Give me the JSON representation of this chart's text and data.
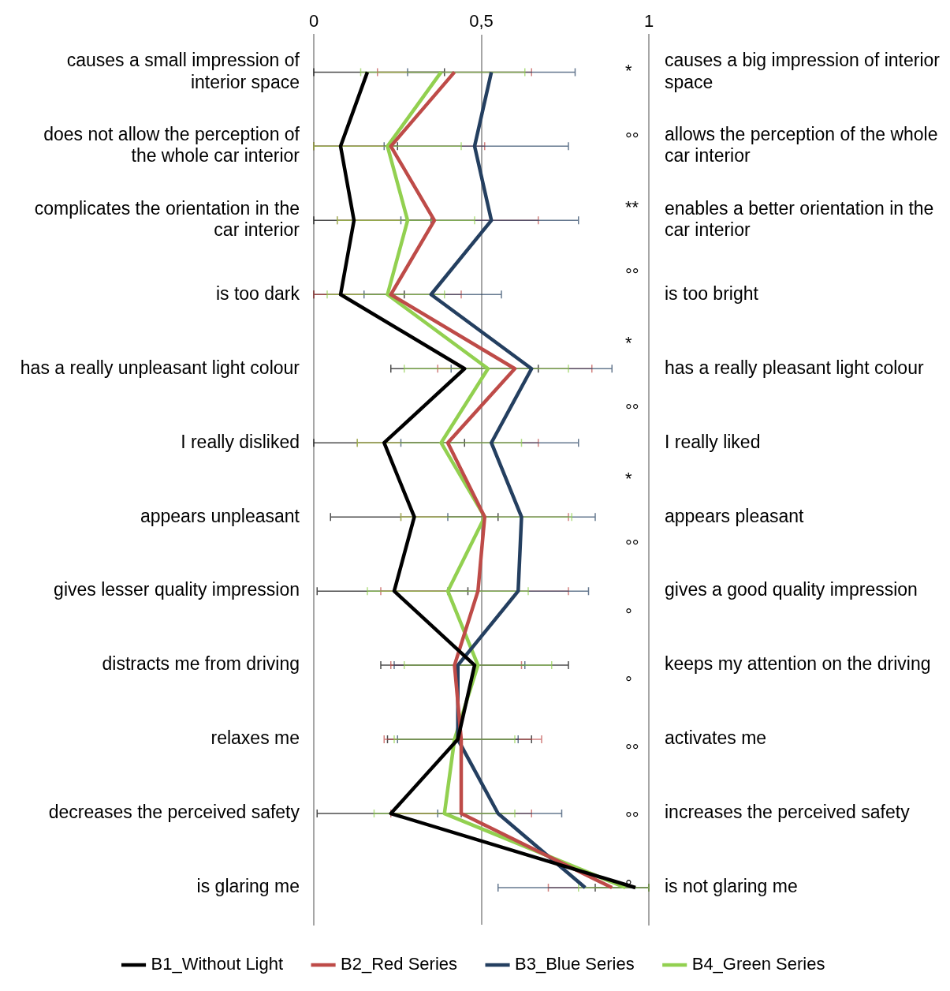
{
  "chart_data": {
    "type": "line",
    "orientation": "horizontal",
    "categories": [
      "causes a small impression of interior space",
      "does not allow the perception of the whole car interior",
      "complicates the orientation in the car interior",
      "is too dark",
      "has a really unpleasant light colour",
      "I really disliked",
      "appears unpleasant",
      "gives lesser quality impression",
      "distracts me from driving",
      "relaxes me",
      "decreases the perceived safety",
      "is glaring me"
    ],
    "y2_categories": [
      "causes a big impression of interior space",
      "allows the perception of the whole car interior",
      "enables a better orientation in the car interior",
      "is too bright",
      "has a really pleasant light colour",
      "I really liked",
      "appears pleasant",
      "gives a good quality impression",
      "keeps my attention on the driving",
      "activates me",
      "increases the perceived safety",
      "is not glaring me"
    ],
    "xlim": [
      0,
      1
    ],
    "xticks": [
      0,
      {
        "value": 0.5,
        "label": "0,5"
      },
      1
    ],
    "grid": "x",
    "legend": "bottom",
    "line_style": "solid",
    "series": [
      {
        "name": "B1_Without Light",
        "color": "#000000",
        "values": [
          0.16,
          0.08,
          0.12,
          0.08,
          0.45,
          0.21,
          0.3,
          0.24,
          0.48,
          0.43,
          0.23,
          0.96
        ],
        "errors": [
          [
            0,
            0.39
          ],
          [
            0,
            0.25
          ],
          [
            0,
            0.35
          ],
          [
            0,
            0.27
          ],
          [
            0.23,
            0.67
          ],
          [
            0,
            0.45
          ],
          [
            0.05,
            0.55
          ],
          [
            0.01,
            0.46
          ],
          [
            0.2,
            0.76
          ],
          [
            0.22,
            0.65
          ],
          [
            0.01,
            0.44
          ],
          [
            0.84,
            1
          ]
        ]
      },
      {
        "name": "B2_Red Series",
        "color": "#be4b48",
        "values": [
          0.42,
          0.23,
          0.36,
          0.23,
          0.6,
          0.4,
          0.51,
          0.49,
          0.42,
          0.44,
          0.44,
          0.89
        ],
        "errors": [
          [
            0.19,
            0.65
          ],
          [
            0,
            0.51
          ],
          [
            0.07,
            0.67
          ],
          [
            0,
            0.44
          ],
          [
            0.37,
            0.83
          ],
          [
            0.13,
            0.67
          ],
          [
            0.26,
            0.76
          ],
          [
            0.2,
            0.76
          ],
          [
            0.23,
            0.62
          ],
          [
            0.21,
            0.68
          ],
          [
            0.23,
            0.65
          ],
          [
            0.7,
            1
          ]
        ]
      },
      {
        "name": "B3_Blue Series",
        "color": "#243f60",
        "values": [
          0.53,
          0.48,
          0.53,
          0.35,
          0.65,
          0.53,
          0.62,
          0.61,
          0.43,
          0.43,
          0.55,
          0.81
        ],
        "errors": [
          [
            0.28,
            0.78
          ],
          [
            0.21,
            0.76
          ],
          [
            0.26,
            0.79
          ],
          [
            0.15,
            0.56
          ],
          [
            0.41,
            0.89
          ],
          [
            0.26,
            0.79
          ],
          [
            0.4,
            0.84
          ],
          [
            0.4,
            0.82
          ],
          [
            0.24,
            0.63
          ],
          [
            0.25,
            0.61
          ],
          [
            0.37,
            0.74
          ],
          [
            0.55,
            1
          ]
        ]
      },
      {
        "name": "B4_Green Series",
        "color": "#92d050",
        "values": [
          0.38,
          0.22,
          0.28,
          0.22,
          0.52,
          0.38,
          0.51,
          0.4,
          0.49,
          0.42,
          0.39,
          0.93
        ],
        "errors": [
          [
            0.14,
            0.63
          ],
          [
            0,
            0.44
          ],
          [
            0.07,
            0.48
          ],
          [
            0.04,
            0.39
          ],
          [
            0.27,
            0.76
          ],
          [
            0.13,
            0.62
          ],
          [
            0.26,
            0.77
          ],
          [
            0.16,
            0.64
          ],
          [
            0.27,
            0.71
          ],
          [
            0.24,
            0.6
          ],
          [
            0.18,
            0.6
          ],
          [
            0.79,
            1
          ]
        ]
      }
    ],
    "annotations": [
      "*",
      "°°",
      "**",
      "°°",
      "*",
      "°°",
      "*",
      "°°",
      "°",
      "°",
      "°°",
      "°°",
      "°"
    ]
  }
}
